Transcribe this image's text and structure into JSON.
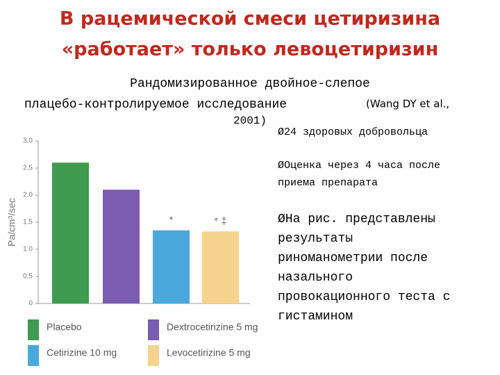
{
  "slide": {
    "title": [
      "В рацемической смеси цетиризина",
      "«работает» только левоцетиризин"
    ],
    "subtitle": [
      "Рандомизированное двойное-слепое",
      "плацебо-контролируемое исследование",
      "(Wang DY et al.,",
      "2001)"
    ],
    "bullets": [
      [
        "Ø24 здоровых добровольца"
      ],
      [
        "ØОценка через 4 часа после",
        "приема препарата"
      ],
      [
        "ØНа рис. представлены",
        "результаты",
        "риноманометрии после",
        "назального",
        "провокационного теста с",
        "гистамином"
      ]
    ]
  },
  "chart_data": {
    "type": "bar",
    "y_label": "Pa/cm³/sec",
    "categories": [
      "Placebo",
      "Dextrocetirizine 5 mg",
      "Cetirizine 10 mg",
      "Levocetirizine 5 mg"
    ],
    "values": [
      2.6,
      2.1,
      1.35,
      1.33
    ],
    "colors": [
      "#3f9b4f",
      "#7a5cb0",
      "#4aa8dc",
      "#f6d38c"
    ],
    "annotations": [
      {
        "index": 2,
        "text": "*"
      },
      {
        "index": 3,
        "text": "* ‡"
      }
    ],
    "ylim": [
      0,
      3
    ],
    "yticks": [
      0,
      0.5,
      {
        "value": 1,
        "label": "1.0"
      },
      1.5,
      {
        "value": 2,
        "label": "2.0"
      },
      2.5,
      {
        "value": 3,
        "label": "3.0"
      }
    ]
  }
}
